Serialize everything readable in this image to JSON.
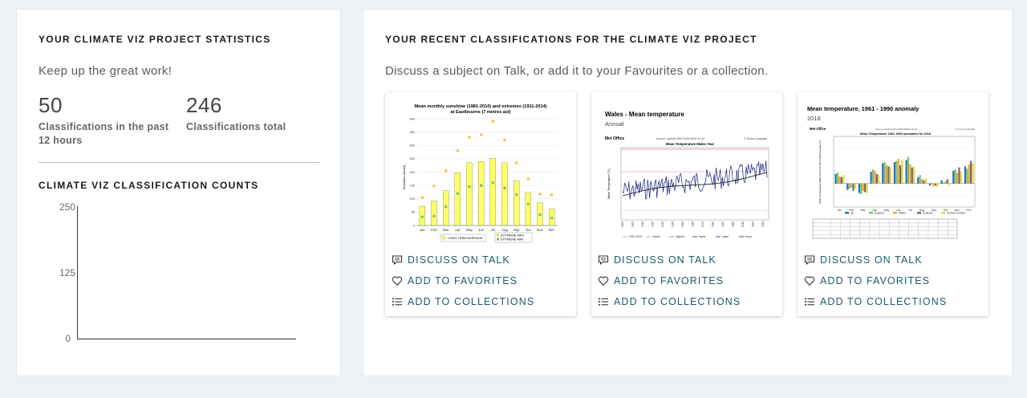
{
  "stats": {
    "heading": "YOUR CLIMATE VIZ PROJECT STATISTICS",
    "encouragement": "Keep up the great work!",
    "recent_count": "50",
    "recent_label_line1": "Classifications in the past",
    "recent_label_line2": "12 hours",
    "total_count": "246",
    "total_label": "Classifications total",
    "counts_heading": "CLIMATE VIZ CLASSIFICATION COUNTS",
    "axis_ticks": [
      "250",
      "125",
      "0"
    ]
  },
  "recent": {
    "heading": "YOUR RECENT CLASSIFICATIONS FOR THE CLIMATE VIZ PROJECT",
    "instructions": "Discuss a subject on Talk, or add it to your Favourites or a collection.",
    "actions": {
      "talk": "DISCUSS ON TALK",
      "favorites": "ADD TO FAVORITES",
      "collections": "ADD TO COLLECTIONS"
    },
    "subjects": [
      {
        "title_line1": "Mean monthly sunshine (1981-2010) and extremes (1911-2014)",
        "title_line2": "at Eastbourne (7 metres asl)",
        "ylabel": "Sunshine (hours)",
        "months": [
          "Jan",
          "Feb",
          "Mar",
          "Apr",
          "May",
          "Jun",
          "Jul",
          "Aug",
          "Sep",
          "Oct",
          "Nov",
          "Dec"
        ],
        "yticks": [
          "400",
          "350",
          "300",
          "250",
          "200",
          "150",
          "100",
          "50",
          "0"
        ],
        "legend_avg": "LONG TERM AVERAGE",
        "legend_max": "EXTREME MAX",
        "legend_min": "EXTREME MIN",
        "bar_color": "#ffff66",
        "max_color": "#f5c542",
        "min_color": "#8bbf5a"
      },
      {
        "title": "Wales - Mean temperature",
        "subtitle": "Annual",
        "brand": "Met Office",
        "source": "Source: HadUK-Grid 01/01/2024 10:42",
        "copyright": "© Crown copyright",
        "chart_title": "Mean Temperature Wales Year",
        "ylabel": "Mean Temperature (°C)",
        "legend": [
          "1961-2020",
          "lowest",
          "highest",
          "latest",
          "value",
          "trend"
        ]
      },
      {
        "title": "Mean temperature, 1961 - 1990 anomaly",
        "subtitle": "2018",
        "brand": "Met Office",
        "source": "Source: HadUK-Grid 23/01/2023 14:29",
        "copyright": "© Crown copyright",
        "chart_title": "Mean Temperature 1961-1990 anomalies for 2018",
        "ylabel": "Mean Temperature difference from 1961-1990 average (°C)",
        "legend": [
          "UK",
          "England",
          "Wales",
          "Scotland",
          "Northern Ireland"
        ],
        "colors": [
          "#2b6fb5",
          "#7cc36b",
          "#f2a33a",
          "#6b6b6b",
          "#e9d44a"
        ]
      }
    ]
  }
}
